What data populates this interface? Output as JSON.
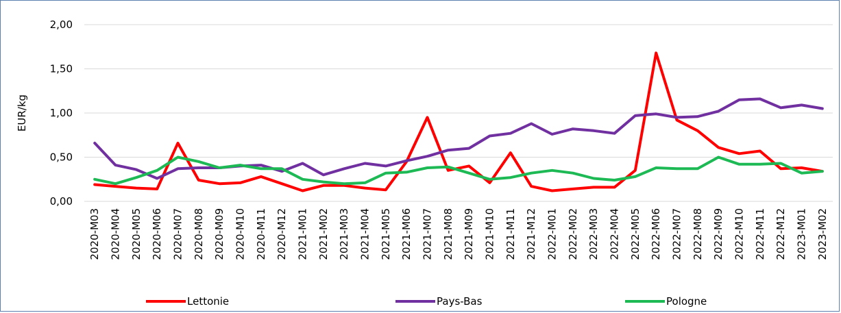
{
  "chart_data": {
    "type": "line",
    "title": "",
    "xlabel": "",
    "ylabel": "EUR/kg",
    "ylim": [
      0,
      2
    ],
    "yticks": [
      "0,00",
      "0,50",
      "1,00",
      "1,50",
      "2,00"
    ],
    "ytick_values": [
      0,
      0.5,
      1,
      1.5,
      2
    ],
    "grid": "horizontal",
    "legend_position": "bottom",
    "categories": [
      "2020-M03",
      "2020-M04",
      "2020-M05",
      "2020-M06",
      "2020-M07",
      "2020-M08",
      "2020-M09",
      "2020-M10",
      "2020-M11",
      "2020-M12",
      "2021-M01",
      "2021-M02",
      "2021-M03",
      "2021-M04",
      "2021-M05",
      "2021-M06",
      "2021-M07",
      "2021-M08",
      "2021-M09",
      "2021-M10",
      "2021-M11",
      "2021-M12",
      "2022-M01",
      "2022-M02",
      "2022-M03",
      "2022-M04",
      "2022-M05",
      "2022-M06",
      "2022-M07",
      "2022-M08",
      "2022-M09",
      "2022-M10",
      "2022-M11",
      "2022-M12",
      "2023-M01",
      "2023-M02"
    ],
    "series": [
      {
        "name": "Lettonie",
        "color": "#ff0000",
        "values": [
          0.19,
          0.17,
          0.15,
          0.14,
          0.66,
          0.24,
          0.2,
          0.21,
          0.28,
          0.2,
          0.12,
          0.18,
          0.18,
          0.15,
          0.13,
          0.45,
          0.95,
          0.35,
          0.4,
          0.21,
          0.55,
          0.17,
          0.12,
          0.14,
          0.16,
          0.16,
          0.35,
          1.68,
          0.92,
          0.8,
          0.61,
          0.54,
          0.57,
          0.37,
          0.38,
          0.34
        ]
      },
      {
        "name": "Pays-Bas",
        "color": "#7030a0",
        "values": [
          0.66,
          0.41,
          0.36,
          0.26,
          0.37,
          0.38,
          0.38,
          0.4,
          0.41,
          0.34,
          0.43,
          0.3,
          0.37,
          0.43,
          0.4,
          0.46,
          0.51,
          0.58,
          0.6,
          0.74,
          0.77,
          0.88,
          0.76,
          0.82,
          0.8,
          0.77,
          0.97,
          0.99,
          0.95,
          0.96,
          1.02,
          1.15,
          1.16,
          1.06,
          1.09,
          1.05
        ]
      },
      {
        "name": "Pologne",
        "color": "#1db954",
        "values": [
          0.25,
          0.2,
          0.27,
          0.35,
          0.5,
          0.45,
          0.38,
          0.41,
          0.37,
          0.37,
          0.25,
          0.22,
          0.2,
          0.21,
          0.32,
          0.33,
          0.38,
          0.39,
          0.32,
          0.25,
          0.27,
          0.32,
          0.35,
          0.32,
          0.26,
          0.24,
          0.28,
          0.38,
          0.37,
          0.37,
          0.5,
          0.42,
          0.42,
          0.43,
          0.32,
          0.34
        ]
      }
    ]
  }
}
